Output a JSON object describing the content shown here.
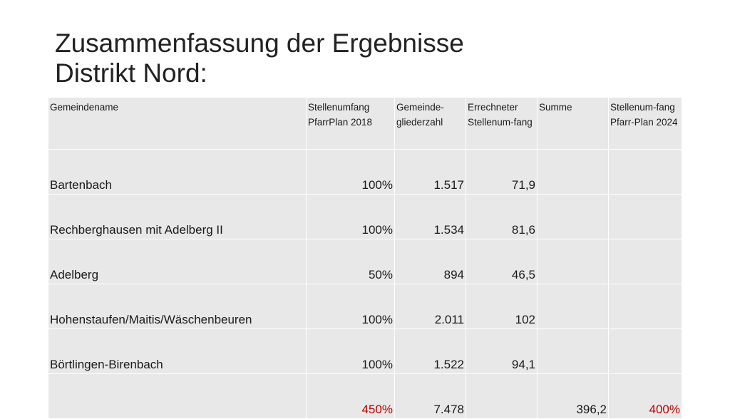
{
  "title": {
    "line1": "Zusammenfassung der Ergebnisse",
    "line2": "Distrikt Nord:"
  },
  "colors": {
    "header_bg": "#e8e8e8",
    "highlight": "#c00000"
  },
  "table": {
    "headers": [
      "Gemeindename",
      "Stellenumfang PfarrPlan 2018",
      "Gemeinde-gliederzahl",
      "Errechneter Stellenum-fang",
      "Summe",
      "Stellenum-fang Pfarr-Plan 2024"
    ],
    "rows": [
      {
        "name": "Bartenbach",
        "stellenumfang_2018": "100%",
        "gemeindeglieder": "1.517",
        "errechnet": "71,9",
        "summe": "",
        "stellenumfang_2024": ""
      },
      {
        "name": "Rechberghausen mit Adelberg II",
        "stellenumfang_2018": "100%",
        "gemeindeglieder": "1.534",
        "errechnet": "81,6",
        "summe": "",
        "stellenumfang_2024": ""
      },
      {
        "name": "Adelberg",
        "stellenumfang_2018": "50%",
        "gemeindeglieder": "894",
        "errechnet": "46,5",
        "summe": "",
        "stellenumfang_2024": ""
      },
      {
        "name": "Hohenstaufen/Maitis/Wäschenbeuren",
        "stellenumfang_2018": "100%",
        "gemeindeglieder": "2.011",
        "errechnet": "102",
        "summe": "",
        "stellenumfang_2024": ""
      },
      {
        "name": "Börtlingen-Birenbach",
        "stellenumfang_2018": "100%",
        "gemeindeglieder": "1.522",
        "errechnet": "94,1",
        "summe": "",
        "stellenumfang_2024": ""
      }
    ],
    "total": {
      "name": "",
      "stellenumfang_2018": "450%",
      "gemeindeglieder": "7.478",
      "errechnet": "",
      "summe": "396,2",
      "stellenumfang_2024": "400%"
    }
  }
}
